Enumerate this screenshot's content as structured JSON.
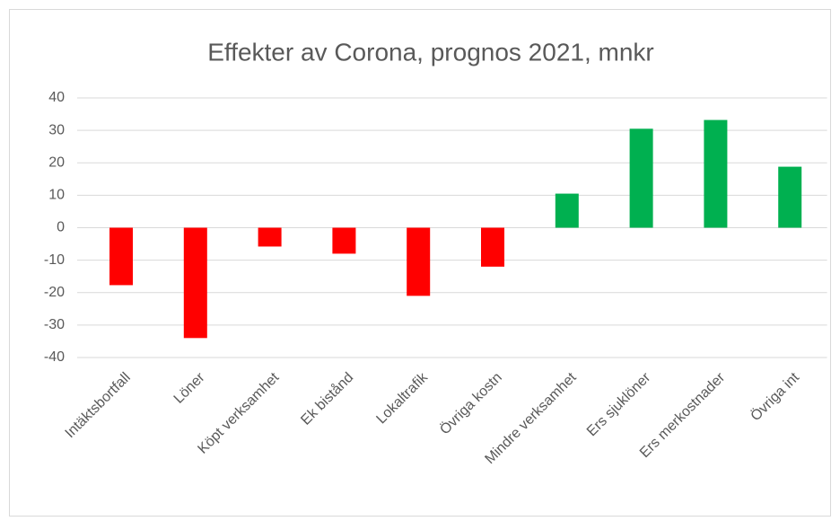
{
  "chart_data": {
    "type": "bar",
    "title": "Effekter av Corona, prognos 2021, mnkr",
    "categories": [
      "Intäktsbortfall",
      "Löner",
      "Köpt verksamhet",
      "Ek bistånd",
      "Lokaltrafik",
      "Övriga kostn",
      "Mindre verksamhet",
      "Ers sjuklöner",
      "Ers merkostnader",
      "Övriga int"
    ],
    "values": [
      -17.7,
      -34,
      -5.8,
      -8,
      -21,
      -12,
      10.5,
      30.5,
      33.2,
      18.8
    ],
    "colors": [
      "#ff0000",
      "#ff0000",
      "#ff0000",
      "#ff0000",
      "#ff0000",
      "#ff0000",
      "#00b050",
      "#00b050",
      "#00b050",
      "#00b050"
    ],
    "ylim": [
      -40,
      40
    ],
    "yticks": [
      -40,
      -30,
      -20,
      -10,
      0,
      10,
      20,
      30,
      40
    ],
    "grid": true
  }
}
